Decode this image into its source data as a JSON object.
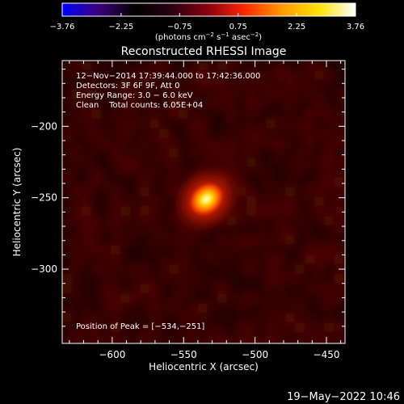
{
  "chart_data": {
    "type": "heatmap",
    "title": "Reconstructed RHESSI Image",
    "xlabel": "Heliocentric X (arcsec)",
    "ylabel": "Heliocentric Y (arcsec)",
    "xlim": [
      -635,
      -437
    ],
    "ylim": [
      -352,
      -154
    ],
    "x_ticks": [
      "−600",
      "−550",
      "−500",
      "−450"
    ],
    "x_tick_values": [
      -600,
      -550,
      -500,
      -450
    ],
    "y_ticks": [
      "−200",
      "−250",
      "−300"
    ],
    "y_tick_values": [
      -200,
      -250,
      -300
    ],
    "colorbar": {
      "range": [
        -3.76,
        3.76
      ],
      "tick_labels": [
        "−3.76",
        "−2.25",
        "−0.75",
        "0.75",
        "2.25",
        "3.76"
      ],
      "tick_values": [
        -3.76,
        -2.25,
        -0.75,
        0.75,
        2.25,
        3.76
      ],
      "unit_prefix": "(photons cm",
      "unit_exp1": "−2",
      "unit_mid": " s",
      "unit_exp2": "−1",
      "unit_mid2": " asec",
      "unit_exp3": "−2",
      "unit_suffix": ")",
      "colors": [
        "#0000ff",
        "#3c0078",
        "#000000",
        "#2a0010",
        "#8c0010",
        "#ff2a00",
        "#ff9a00",
        "#ffe200",
        "#ffffff"
      ]
    },
    "source": {
      "x": -534,
      "y": -251,
      "peak": 3.76
    },
    "annotations": [
      "12−Nov−2014 17:39:44.000 to 17:42:36.000",
      "Detectors: 3F 6F 9F, Att 0",
      "Energy Range: 3.0 − 6.0 keV",
      "Clean    Total counts: 6.05E+04"
    ],
    "peak_label": "Position of Peak = [−534,−251]",
    "timestamp": "19−May−2022 10:46"
  }
}
